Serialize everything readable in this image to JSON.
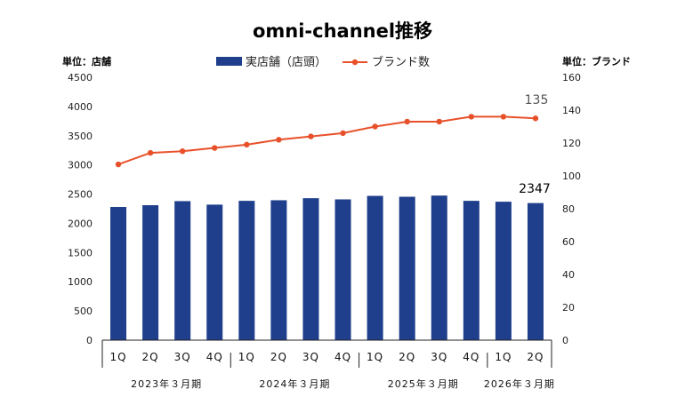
{
  "chart_data": {
    "type": "bar+line",
    "title": "omni-channel推移",
    "left_unit": "単位：店舗",
    "right_unit": "単位：ブランド",
    "categories": [
      "1Q",
      "2Q",
      "3Q",
      "4Q",
      "1Q",
      "2Q",
      "3Q",
      "4Q",
      "1Q",
      "2Q",
      "3Q",
      "4Q",
      "1Q",
      "2Q"
    ],
    "year_groups": [
      {
        "label": "2023年３月期",
        "count": 4
      },
      {
        "label": "2024年３月期",
        "count": 4
      },
      {
        "label": "2025年３月期",
        "count": 4
      },
      {
        "label": "2026年３月期",
        "count": 2
      }
    ],
    "series": [
      {
        "name": "実店舗（店頭）",
        "type": "bar",
        "axis": "left",
        "color": "#1f3f8c",
        "values": [
          2280,
          2310,
          2380,
          2320,
          2385,
          2395,
          2430,
          2410,
          2470,
          2455,
          2475,
          2385,
          2370,
          2347
        ]
      },
      {
        "name": "ブランド数",
        "type": "line",
        "axis": "right",
        "color": "#e8502a",
        "values": [
          107,
          114,
          115,
          117,
          119,
          122,
          124,
          126,
          130,
          133,
          133,
          136,
          136,
          135
        ]
      }
    ],
    "left_ylim": [
      0,
      4500
    ],
    "left_ticks": [
      0,
      500,
      1000,
      1500,
      2000,
      2500,
      3000,
      3500,
      4000,
      4500
    ],
    "right_ylim": [
      0,
      160
    ],
    "right_ticks": [
      0,
      20,
      40,
      60,
      80,
      100,
      120,
      140,
      160
    ],
    "annotations": {
      "last_bar": "2347",
      "last_line": "135"
    },
    "legend_position": "top-center"
  }
}
